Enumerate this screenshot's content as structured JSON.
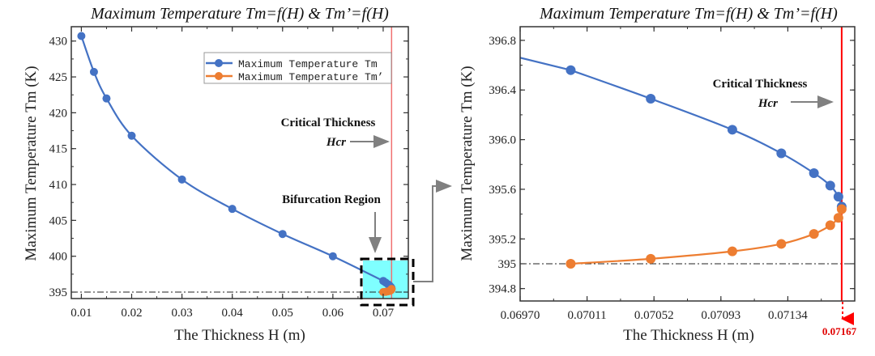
{
  "colors": {
    "tm": "#4472C4",
    "tm_prime": "#ED7D31",
    "critical_line": "#FF0000",
    "bifurcation_fill": "#7FFFFF",
    "annotation_arrow": "#808080"
  },
  "chart_data": [
    {
      "type": "line",
      "title": "Maximum Temperature Tm=f(H) & Tm’=f(H)",
      "xlabel": "The Thickness H (m)",
      "ylabel": "Maximum Temperature Tm (K)",
      "xlim": [
        0.008,
        0.075
      ],
      "ylim": [
        394.1,
        432.0
      ],
      "xticks": [
        0.01,
        0.02,
        0.03,
        0.04,
        0.05,
        0.06,
        0.07
      ],
      "xtick_labels": [
        "0.01",
        "0.02",
        "0.03",
        "0.04",
        "0.05",
        "0.06",
        "0.07"
      ],
      "yticks": [
        395,
        400,
        405,
        410,
        415,
        420,
        425,
        430
      ],
      "ytick_labels": [
        "395",
        "400",
        "405",
        "410",
        "415",
        "420",
        "425",
        "430"
      ],
      "grid": false,
      "legend_position": "top-right",
      "reference_line_y": 395,
      "critical_x": 0.07167,
      "series": [
        {
          "name": "Maximum Temperature Tm",
          "color": "#4472C4",
          "x": [
            0.01,
            0.0125,
            0.015,
            0.02,
            0.03,
            0.04,
            0.05,
            0.06,
            0.07001,
            0.0705,
            0.071,
            0.0713,
            0.0715,
            0.0716,
            0.07165,
            0.07167
          ],
          "y": [
            430.7,
            425.7,
            422.0,
            416.8,
            410.7,
            406.6,
            403.1,
            400.0,
            396.56,
            396.33,
            396.08,
            395.89,
            395.73,
            395.63,
            395.54,
            395.46
          ]
        },
        {
          "name": "Maximum Temperature Tm’",
          "color": "#ED7D31",
          "x": [
            0.07001,
            0.0705,
            0.071,
            0.0713,
            0.0715,
            0.0716,
            0.07165,
            0.07167
          ],
          "y": [
            395.0,
            395.04,
            395.1,
            395.16,
            395.24,
            395.31,
            395.37,
            395.44
          ]
        }
      ],
      "annotations": {
        "critical": "Critical Thickness",
        "hcr": "Hcr",
        "bifurcation": "Bifurcation Region"
      }
    },
    {
      "type": "line",
      "title": "Maximum Temperature Tm=f(H) & Tm’=f(H)",
      "xlabel": "The Thickness H (m)",
      "ylabel": "Maximum Temperature Tm (K)",
      "xlim": [
        0.0697,
        0.07175
      ],
      "ylim": [
        394.7,
        396.91
      ],
      "xticks": [
        0.0697,
        0.07011,
        0.07052,
        0.07093,
        0.07134
      ],
      "xtick_labels": [
        "0.06970",
        "0.07011",
        "0.07052",
        "0.07093",
        "0.07134"
      ],
      "yticks": [
        394.8,
        395,
        395.2,
        395.6,
        396.0,
        396.4,
        396.8
      ],
      "ytick_labels": [
        "394.8",
        "395",
        "395.2",
        "395.6",
        "396.0",
        "396.4",
        "396.8"
      ],
      "grid": false,
      "reference_line_y": 395,
      "critical_x": 0.07167,
      "critical_label": "0.07167",
      "series": [
        {
          "name": "Maximum Temperature Tm",
          "color": "#4472C4",
          "x": [
            0.07001,
            0.0705,
            0.071,
            0.0713,
            0.0715,
            0.0716,
            0.07165,
            0.07167
          ],
          "y": [
            396.56,
            396.33,
            396.08,
            395.89,
            395.73,
            395.63,
            395.54,
            395.46
          ]
        },
        {
          "name": "Maximum Temperature Tm’",
          "color": "#ED7D31",
          "x": [
            0.07001,
            0.0705,
            0.071,
            0.0713,
            0.0715,
            0.0716,
            0.07165,
            0.07167
          ],
          "y": [
            395.0,
            395.04,
            395.1,
            395.16,
            395.24,
            395.31,
            395.37,
            395.44
          ]
        }
      ],
      "annotations": {
        "critical": "Critical Thickness",
        "hcr": "Hcr"
      }
    }
  ]
}
